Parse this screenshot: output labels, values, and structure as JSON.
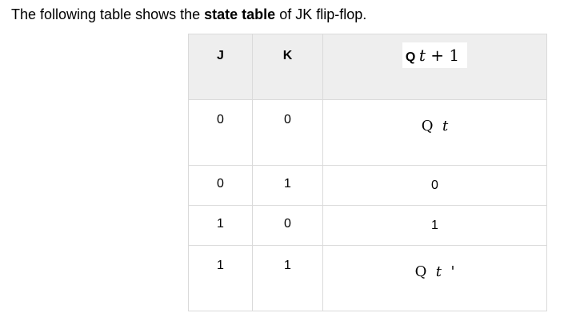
{
  "intro": {
    "prefix": "The following table shows the ",
    "bold": "state table",
    "suffix": " of JK flip-flop."
  },
  "table": {
    "headers": {
      "j": "J",
      "k": "K",
      "q_next": {
        "q": "Q",
        "t": "t",
        "plus": " + ",
        "one": "1"
      }
    },
    "rows": [
      {
        "j": "0",
        "k": "0",
        "q": {
          "q": "Q",
          "t": "t",
          "suffix": ""
        }
      },
      {
        "j": "0",
        "k": "1",
        "q_text": "0"
      },
      {
        "j": "1",
        "k": "0",
        "q_text": "1"
      },
      {
        "j": "1",
        "k": "1",
        "q": {
          "q": "Q",
          "t": "t",
          "suffix": "'"
        }
      }
    ]
  }
}
